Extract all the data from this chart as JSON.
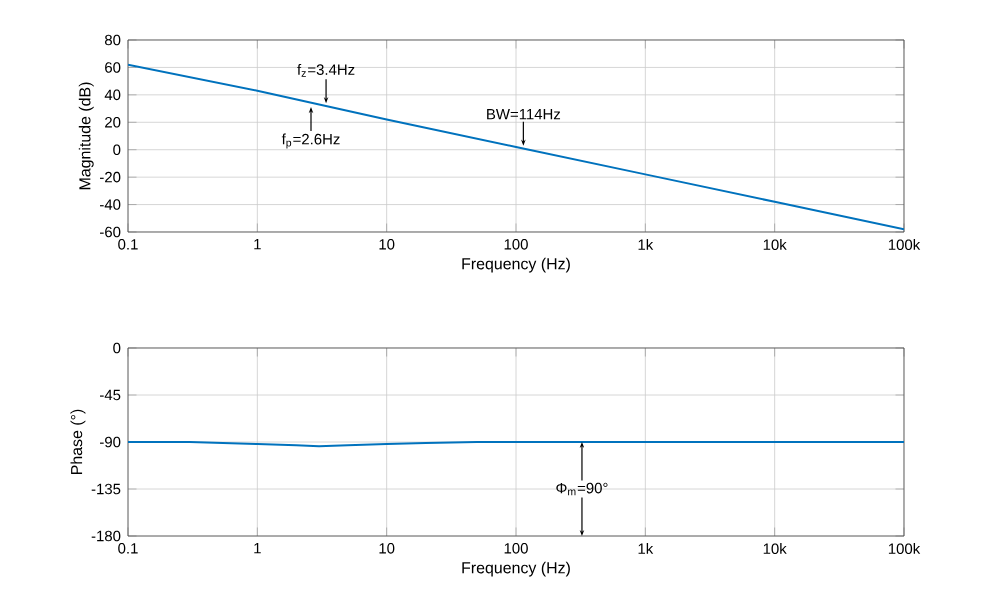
{
  "chart_data": [
    {
      "type": "line",
      "xlabel": "Frequency (Hz)",
      "ylabel": "Magnitude (dB)",
      "log": "x",
      "grid": true,
      "x": [
        0.1,
        1,
        10,
        100,
        1000,
        10000,
        100000
      ],
      "series": [
        {
          "color": "#0072bd",
          "values": [
            62,
            43,
            22,
            2,
            -18,
            -38,
            -58
          ]
        }
      ],
      "xlim": [
        0.1,
        100000
      ],
      "ylim": [
        -60,
        80
      ],
      "xticks": [
        0.1,
        1,
        10,
        100,
        {
          "value": 1000,
          "label": "1k"
        },
        {
          "value": 10000,
          "label": "10k"
        },
        {
          "value": 100000,
          "label": "100k"
        }
      ],
      "yticks": [
        -60,
        -40,
        -20,
        0,
        20,
        40,
        60,
        80
      ],
      "annotations": [
        {
          "text": "f$_{z}$=3.4Hz",
          "x": 3.4,
          "y": 31
        },
        {
          "text": "f$_{p}$=2.6Hz",
          "x": 2.6,
          "y": 34
        },
        {
          "text": "BW=114Hz",
          "x": 114,
          "y": 0
        }
      ]
    },
    {
      "type": "line",
      "xlabel": "Frequency (Hz)",
      "ylabel": "Phase (°)",
      "log": "x",
      "grid": true,
      "x": [
        0.1,
        0.3,
        1,
        2,
        3,
        5,
        10,
        20,
        50,
        100,
        1000,
        100000
      ],
      "series": [
        {
          "color": "#0072bd",
          "values": [
            -90,
            -90,
            -92,
            -93,
            -94,
            -93,
            -92,
            -91,
            -90,
            -90,
            -90,
            -90
          ]
        }
      ],
      "xlim": [
        0.1,
        100000
      ],
      "ylim": [
        -180,
        0
      ],
      "xticks": [
        0.1,
        1,
        10,
        100,
        {
          "value": 1000,
          "label": "1k"
        },
        {
          "value": 10000,
          "label": "10k"
        },
        {
          "value": 100000,
          "label": "100k"
        }
      ],
      "yticks": [
        -180,
        -135,
        -90,
        -45,
        0
      ],
      "annotations": [
        "Φ$_{m}$=90°"
      ]
    }
  ]
}
